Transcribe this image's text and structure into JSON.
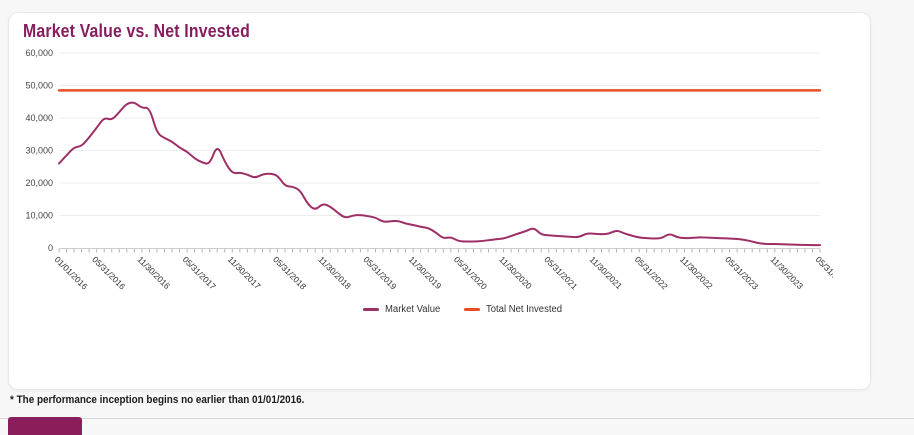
{
  "page": {
    "background": "#f7f7f7",
    "footnote": "* The performance inception begins no earlier than 01/01/2016.",
    "partial_button_color": "#8a1d5c"
  },
  "card": {
    "title": "Market Value vs. Net Invested",
    "title_color": "#871d5e"
  },
  "chart_data": {
    "type": "line",
    "title": "Market Value vs. Net Invested",
    "ylim": [
      0,
      60000
    ],
    "y_tick_labels": [
      "0",
      "10,000",
      "20,000",
      "30,000",
      "40,000",
      "50,000",
      "60,000"
    ],
    "x_tick_labels": [
      "01/01/2016",
      "05/31/2016",
      "11/30/2016",
      "05/31/2017",
      "11/30/2017",
      "05/31/2018",
      "11/30/2018",
      "05/31/2019",
      "11/30/2019",
      "05/31/2020",
      "11/30/2020",
      "05/31/2021",
      "11/30/2021",
      "05/31/2022",
      "11/30/2022",
      "05/31/2023",
      "11/30/2023",
      "05/31/2024"
    ],
    "x_tick_months": [
      0,
      5,
      11,
      17,
      23,
      29,
      35,
      41,
      47,
      53,
      59,
      65,
      71,
      77,
      83,
      89,
      95,
      101
    ],
    "x_unit": "monthly",
    "n_points": 102,
    "grid": "horizontal",
    "legend_position": "bottom-center",
    "series": [
      {
        "name": "Market Value",
        "color": "#9d2f66",
        "values": [
          26000,
          28500,
          31000,
          31300,
          34000,
          37000,
          40200,
          39300,
          41800,
          44500,
          44900,
          43000,
          43300,
          35300,
          33800,
          32800,
          30800,
          29700,
          27500,
          26300,
          25700,
          31900,
          26500,
          22900,
          23200,
          22600,
          21500,
          22700,
          22900,
          22400,
          19000,
          18900,
          17800,
          13500,
          11600,
          13700,
          12800,
          10800,
          9200,
          10000,
          10200,
          9800,
          9400,
          8000,
          8200,
          8400,
          7500,
          7100,
          6500,
          6200,
          4800,
          2900,
          3400,
          2100,
          2000,
          2000,
          2100,
          2400,
          2700,
          2900,
          3700,
          4500,
          5200,
          6300,
          4100,
          3900,
          3700,
          3600,
          3400,
          3300,
          4500,
          4400,
          4200,
          4400,
          5500,
          4500,
          3800,
          3200,
          3000,
          2900,
          3000,
          4500,
          3300,
          3000,
          3100,
          3300,
          3200,
          3100,
          3000,
          2900,
          2800,
          2500,
          2000,
          1400,
          1250,
          1200,
          1150,
          1100,
          1000,
          950,
          900,
          880
        ]
      },
      {
        "name": "Total Net Invested",
        "color": "#e84e25",
        "constant_value": 48500
      }
    ]
  }
}
